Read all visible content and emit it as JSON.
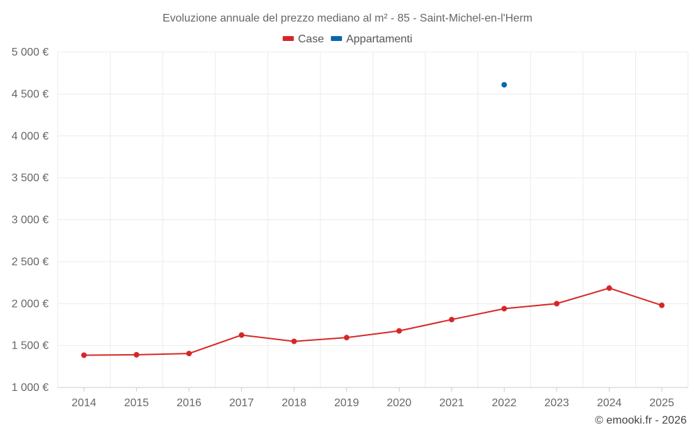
{
  "chart_data": {
    "type": "line",
    "title": "Evoluzione annuale del prezzo mediano al m² - 85 - Saint-Michel-en-l'Herm",
    "categories": [
      "2014",
      "2015",
      "2016",
      "2017",
      "2018",
      "2019",
      "2020",
      "2021",
      "2022",
      "2023",
      "2024",
      "2025"
    ],
    "series": [
      {
        "name": "Case",
        "color": "#d62728",
        "values": [
          1385,
          1390,
          1405,
          1625,
          1550,
          1595,
          1675,
          1810,
          1940,
          2000,
          2185,
          1980
        ]
      },
      {
        "name": "Appartamenti",
        "color": "#0868ac",
        "values": [
          null,
          null,
          null,
          null,
          null,
          null,
          null,
          null,
          4610,
          null,
          null,
          null
        ]
      }
    ],
    "ylim": [
      1000,
      5000
    ],
    "yticks": [
      1000,
      1500,
      2000,
      2500,
      3000,
      3500,
      4000,
      4500,
      5000
    ],
    "ytick_labels": [
      "1 000 €",
      "1 500 €",
      "2 000 €",
      "2 500 €",
      "3 000 €",
      "3 500 €",
      "4 000 €",
      "4 500 €",
      "5 000 €"
    ],
    "legend_position": "top-center",
    "grid": true,
    "xlabel": "",
    "ylabel": ""
  },
  "credit": "© emooki.fr - 2026"
}
